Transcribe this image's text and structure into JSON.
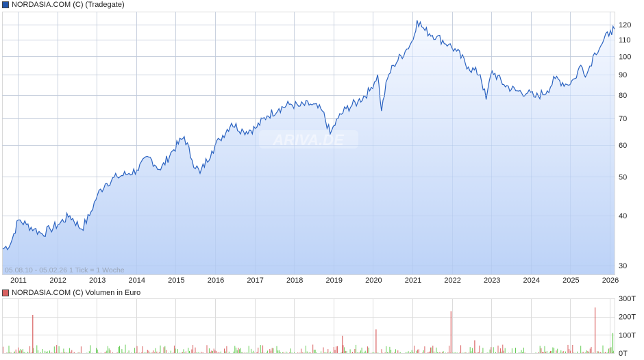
{
  "price_chart": {
    "legend_label": "NORDASIA.COM (C) (Tradegate)",
    "legend_color": "#2255aa",
    "info_text": "05.08.10 - 05.02.26   1 Tick = 1 Woche",
    "watermark": "ARIVA.DE",
    "line_color": "#2a62c0"
  },
  "volume_chart": {
    "legend_label": "NORDASIA.COM (C) Volumen in Euro",
    "legend_color": "#d96060",
    "up_color": "#66cc55",
    "down_color": "#d96060"
  },
  "chart_data": [
    {
      "type": "area",
      "title": "NORDASIA.COM (C) (Tradegate)",
      "xlabel": "",
      "ylabel": "",
      "scale": "log",
      "x_ticks": [
        "2011",
        "2012",
        "2013",
        "2014",
        "2015",
        "2016",
        "2017",
        "2018",
        "2019",
        "2020",
        "2021",
        "2022",
        "2023",
        "2024",
        "2025",
        "2026"
      ],
      "y_ticks": [
        30,
        40,
        50,
        60,
        70,
        80,
        90,
        100,
        110,
        120
      ],
      "ylim": [
        28,
        128
      ],
      "grid": true,
      "legend_position": "top-left",
      "series": [
        {
          "name": "NORDASIA.COM (C) (Tradegate)",
          "x": [
            2010.6,
            2010.8,
            2011.0,
            2011.2,
            2011.4,
            2011.6,
            2011.8,
            2012.0,
            2012.3,
            2012.6,
            2012.8,
            2013.0,
            2013.2,
            2013.5,
            2013.8,
            2014.0,
            2014.3,
            2014.6,
            2014.9,
            2015.2,
            2015.4,
            2015.6,
            2015.9,
            2016.1,
            2016.4,
            2016.7,
            2017.0,
            2017.3,
            2017.6,
            2017.9,
            2018.1,
            2018.4,
            2018.7,
            2018.9,
            2019.1,
            2019.3,
            2019.6,
            2019.9,
            2020.1,
            2020.2,
            2020.35,
            2020.5,
            2020.8,
            2021.0,
            2021.1,
            2021.3,
            2021.6,
            2021.9,
            2022.1,
            2022.4,
            2022.7,
            2022.85,
            2023.0,
            2023.3,
            2023.6,
            2023.9,
            2024.1,
            2024.4,
            2024.6,
            2024.9,
            2025.1,
            2025.25,
            2025.4,
            2025.6,
            2025.8,
            2026.0,
            2026.1
          ],
          "values": [
            33,
            34,
            39,
            38,
            37,
            36,
            37,
            38,
            40,
            37,
            40,
            45,
            48,
            50,
            51,
            52,
            56,
            52,
            58,
            63,
            55,
            51,
            58,
            62,
            68,
            65,
            66,
            71,
            74,
            76,
            75,
            76,
            73,
            64,
            70,
            74,
            77,
            82,
            90,
            73,
            88,
            95,
            103,
            110,
            123,
            116,
            112,
            107,
            103,
            94,
            90,
            78,
            92,
            85,
            82,
            81,
            79,
            82,
            88,
            85,
            88,
            95,
            90,
            102,
            108,
            116,
            117
          ]
        }
      ]
    },
    {
      "type": "bar",
      "title": "NORDASIA.COM (C) Volumen in Euro",
      "y_ticks": [
        "0T",
        "100T",
        "200T",
        "300T"
      ],
      "ylim": [
        0,
        300000
      ],
      "legend_position": "top-left",
      "notes": "Weekly volume bars; green = up week, red = down week. Notable spikes ~210T (mid 2011), ~130T (early 2020), ~230T (early 2022), ~250T (mid 2025), ~110T (early 2026)."
    }
  ]
}
